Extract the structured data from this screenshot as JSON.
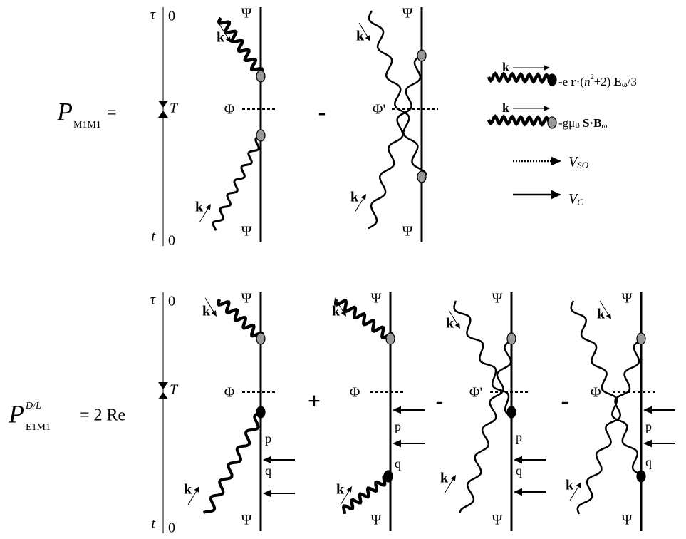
{
  "top": {
    "lhs": {
      "symbol": "P",
      "subscript": "M1M1",
      "equals": "="
    },
    "time_axis": {
      "tau": "τ",
      "tau_zero": "0",
      "T": "T",
      "t": "t",
      "t_zero": "0"
    },
    "diagrams": [
      {
        "psi_top": "Ψ",
        "phi": "Φ",
        "psi_bottom": "Ψ",
        "k_top": "k",
        "k_bottom": "k"
      },
      {
        "operator": "-",
        "psi_top": "Ψ",
        "phi": "Φ'",
        "psi_bottom": "Ψ",
        "k_top": "k",
        "k_bottom": "k"
      }
    ]
  },
  "legend": {
    "electric": {
      "k": "k",
      "parts": [
        "-e",
        "r",
        "·(",
        "n",
        "2",
        "+2)",
        "E",
        "ω",
        "/3"
      ]
    },
    "magnetic": {
      "k": "k",
      "parts": [
        "-gμ",
        "B",
        "S",
        "·",
        "B",
        "ω"
      ]
    },
    "v_so": {
      "symbol": "V",
      "subscript": "SO"
    },
    "v_c": {
      "symbol": "V",
      "subscript": "C"
    }
  },
  "bottom": {
    "lhs": {
      "symbol": "P",
      "superscript": "D/L",
      "subscript": "E1M1",
      "rhs": "= 2 Re"
    },
    "time_axis": {
      "tau": "τ",
      "tau_zero": "0",
      "T": "T",
      "t": "t",
      "t_zero": "0"
    },
    "diagrams": [
      {
        "psi_top": "Ψ",
        "phi": "Φ",
        "psi_bottom": "Ψ",
        "k_top": "k",
        "k_bottom": "k",
        "p": "p",
        "q": "q"
      },
      {
        "operator": "+",
        "psi_top": "Ψ",
        "phi": "Φ",
        "psi_bottom": "Ψ",
        "k_top": "k",
        "k_bottom": "k",
        "p": "p",
        "q": "q"
      },
      {
        "operator": "-",
        "psi_top": "Ψ",
        "phi": "Φ'",
        "psi_bottom": "Ψ",
        "k_top": "k",
        "k_bottom": "k",
        "p": "p",
        "q": "q"
      },
      {
        "operator": "-",
        "psi_top": "Ψ",
        "phi": "Φ'",
        "psi_bottom": "Ψ",
        "k_top": "k",
        "k_bottom": "k",
        "p": "p",
        "q": "q"
      }
    ]
  }
}
